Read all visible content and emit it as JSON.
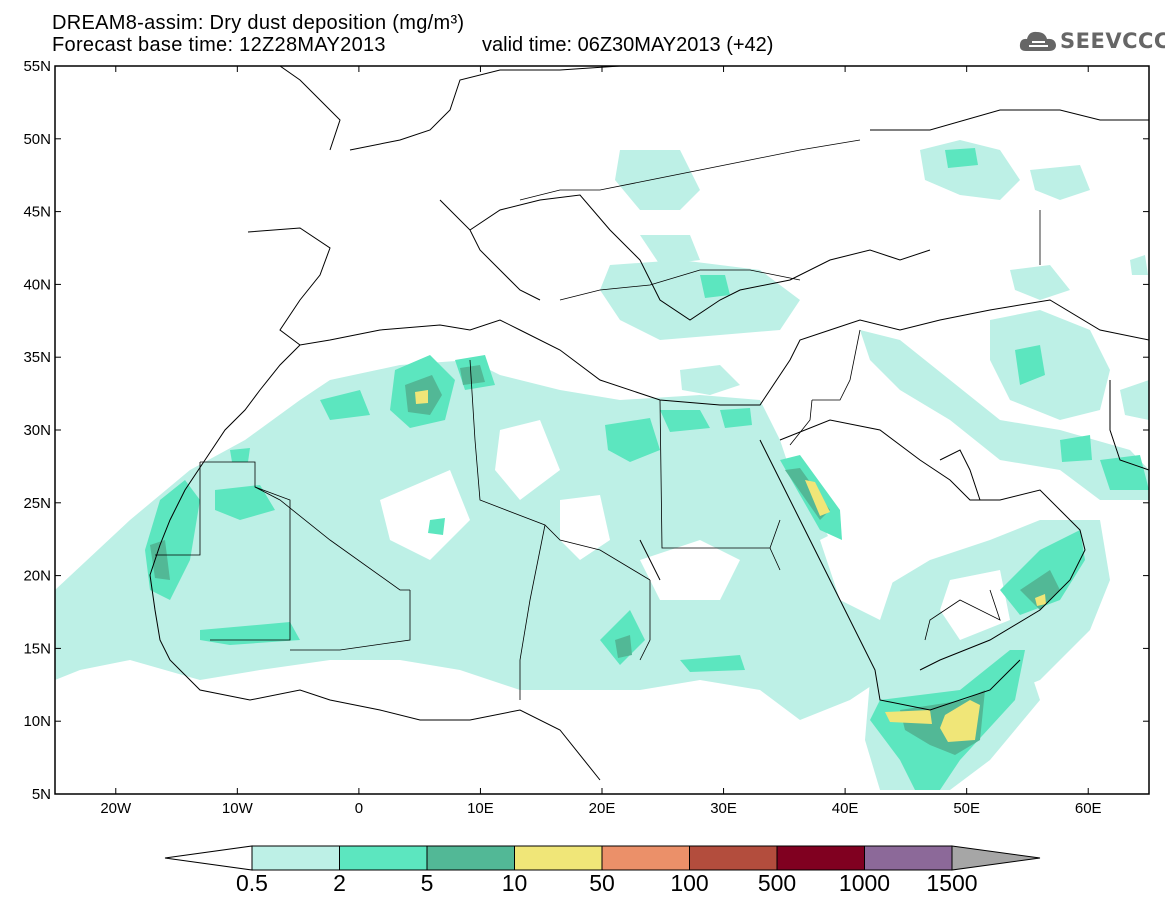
{
  "title": {
    "line1": "DREAM8-assim: Dry dust deposition (mg/m³)",
    "line2": "Forecast base time: 12Z28MAY2013",
    "valid": "valid time: 06Z30MAY2013 (+42)"
  },
  "logo": {
    "text": "SEEVCCC",
    "icon": "cloud-icon"
  },
  "axes": {
    "lat_range": [
      5,
      55
    ],
    "lon_range": [
      -25,
      65
    ],
    "lat_ticks": [
      "5N",
      "10N",
      "15N",
      "20N",
      "25N",
      "30N",
      "35N",
      "40N",
      "45N",
      "50N",
      "55N"
    ],
    "lon_ticks": [
      "20W",
      "10W",
      "0",
      "10E",
      "20E",
      "30E",
      "40E",
      "50E",
      "60E"
    ]
  },
  "colorbar": {
    "labels": [
      "0.5",
      "2",
      "5",
      "10",
      "50",
      "100",
      "500",
      "1000",
      "1500"
    ],
    "colors": [
      "#bdf0e6",
      "#5ce6bf",
      "#52b896",
      "#f0e678",
      "#eb9069",
      "#b34d3d",
      "#800020",
      "#8c6999"
    ]
  },
  "palette": {
    "lowest": "#bdf0e6",
    "low": "#5ce6bf",
    "mid": "#52b896",
    "high": "#f0e678",
    "coast": "#000000",
    "logo": "#666666"
  }
}
